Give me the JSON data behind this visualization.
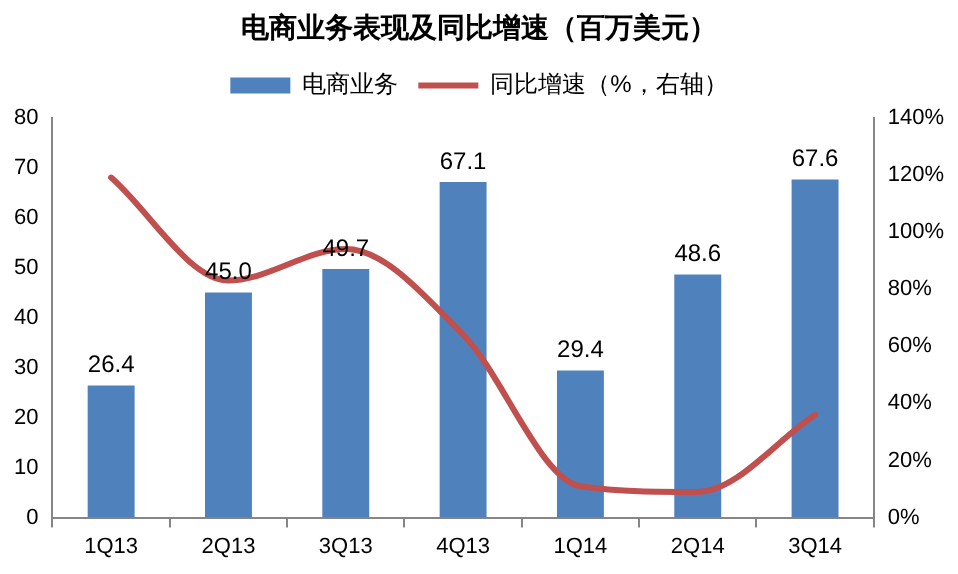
{
  "chart_data": {
    "type": "bar",
    "title": "电商业务表现及同比增速（百万美元）",
    "categories": [
      "1Q13",
      "2Q13",
      "3Q13",
      "4Q13",
      "1Q14",
      "2Q14",
      "3Q14"
    ],
    "series": [
      {
        "name": "电商业务",
        "color": "#4f81bd",
        "values": [
          26.4,
          45.0,
          49.7,
          67.1,
          29.4,
          48.6,
          67.6
        ],
        "value_labels": [
          "26.4",
          "45.0",
          "49.7",
          "67.1",
          "29.4",
          "48.6",
          "67.6"
        ]
      },
      {
        "name": "同比增速（%，右轴）",
        "type": "line",
        "axis": "y2",
        "color": "#c0504d",
        "values": [
          119,
          83,
          94,
          64,
          11,
          9,
          36
        ]
      }
    ],
    "ylim": [
      0,
      80
    ],
    "yticks": [
      0,
      10,
      20,
      30,
      40,
      50,
      60,
      70,
      80
    ],
    "y2lim": [
      0,
      140
    ],
    "y2ticks": [
      {
        "value": 0,
        "label": "0%"
      },
      {
        "value": 20,
        "label": "20%"
      },
      {
        "value": 40,
        "label": "40%"
      },
      {
        "value": 60,
        "label": "60%"
      },
      {
        "value": 80,
        "label": "80%"
      },
      {
        "value": 100,
        "label": "100%"
      },
      {
        "value": 120,
        "label": "120%"
      },
      {
        "value": 140,
        "label": "140%"
      }
    ],
    "grid": false,
    "legend": "top",
    "marker": "none",
    "line_style": "solid"
  }
}
